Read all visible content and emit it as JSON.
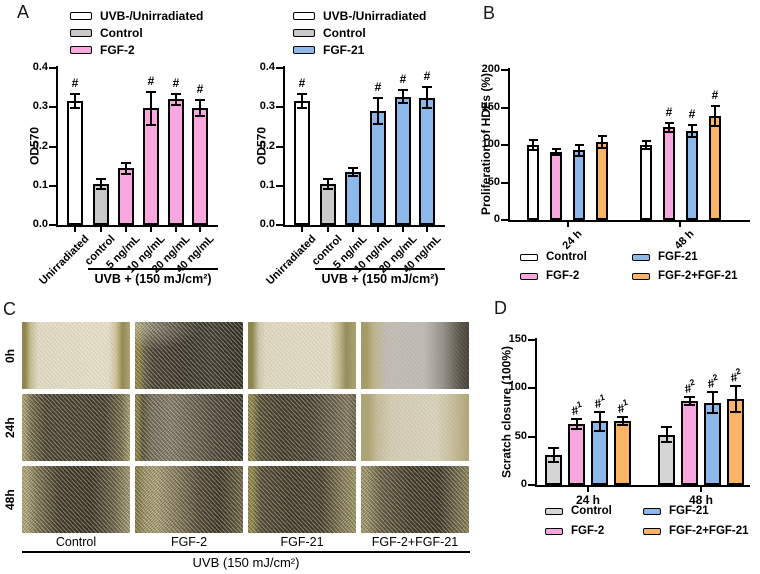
{
  "figure": {
    "background": "#ffffff"
  },
  "colors": {
    "control_white": "#ffffff",
    "control_gray": "#c9c9c9",
    "control_gray_d": "#d6d6d6",
    "fgf2_pink": "#f8a8de",
    "fgf21_blue": "#8cb8ea",
    "combo_orange": "#f9b468"
  },
  "panels": {
    "A": {
      "letter": "A"
    },
    "B": {
      "letter": "B"
    },
    "C": {
      "letter": "C",
      "row_labels": [
        "0h",
        "24h",
        "48h"
      ],
      "col_labels": [
        "Control",
        "FGF-2",
        "FGF-21",
        "FGF-2+FGF-21"
      ],
      "caption": "UVB (150 mJ/cm²)"
    },
    "D": {
      "letter": "D"
    }
  },
  "chart_data": [
    {
      "id": "A-left",
      "type": "bar",
      "panel": "A",
      "ylabel": "OD570",
      "ylim": [
        0,
        0.4
      ],
      "yticks": [
        0,
        0.1,
        0.2,
        0.3,
        0.4
      ],
      "ytick_labels": [
        "0.0",
        "0.1",
        "0.2",
        "0.3",
        "0.4"
      ],
      "categories": [
        "Unirradiated",
        "control",
        "5 ng/mL",
        "10 ng/mL",
        "20 ng/mL",
        "40 ng/mL"
      ],
      "values": [
        0.315,
        0.105,
        0.145,
        0.297,
        0.32,
        0.298
      ],
      "errors": [
        0.018,
        0.013,
        0.014,
        0.042,
        0.015,
        0.02
      ],
      "annotations": [
        "#",
        "",
        "",
        "#",
        "#",
        "#"
      ],
      "bar_colors": [
        "#ffffff",
        "#c9c9c9",
        "#f8a8de",
        "#f8a8de",
        "#f8a8de",
        "#f8a8de"
      ],
      "legend": [
        {
          "label": "UVB-/Unirradiated",
          "color": "#ffffff"
        },
        {
          "label": "Control",
          "color": "#c9c9c9"
        },
        {
          "label": "FGF-2",
          "color": "#f8a8de"
        }
      ],
      "legend_position": "top",
      "group_label": "UVB + (150 mJ/cm²)",
      "grid": false
    },
    {
      "id": "A-right",
      "type": "bar",
      "panel": "A",
      "ylabel": "OD570",
      "ylim": [
        0,
        0.4
      ],
      "yticks": [
        0,
        0.1,
        0.2,
        0.3,
        0.4
      ],
      "ytick_labels": [
        "0.0",
        "0.1",
        "0.2",
        "0.3",
        "0.4"
      ],
      "categories": [
        "Unirradiated",
        "control",
        "5 ng/mL",
        "10 ng/mL",
        "20 ng/mL",
        "40 ng/mL"
      ],
      "values": [
        0.315,
        0.105,
        0.135,
        0.291,
        0.327,
        0.324
      ],
      "errors": [
        0.018,
        0.013,
        0.01,
        0.033,
        0.017,
        0.027
      ],
      "annotations": [
        "#",
        "",
        "",
        "#",
        "#",
        "#"
      ],
      "bar_colors": [
        "#ffffff",
        "#c9c9c9",
        "#8cb8ea",
        "#8cb8ea",
        "#8cb8ea",
        "#8cb8ea"
      ],
      "legend": [
        {
          "label": "UVB-/Unirradiated",
          "color": "#ffffff"
        },
        {
          "label": "Control",
          "color": "#c9c9c9"
        },
        {
          "label": "FGF-21",
          "color": "#8cb8ea"
        }
      ],
      "legend_position": "top",
      "group_label": "UVB + (150 mJ/cm²)",
      "grid": false
    },
    {
      "id": "B",
      "type": "bar",
      "panel": "B",
      "ylabel": "Proliferation of HDFs (%)",
      "ylim": [
        0,
        200
      ],
      "yticks": [
        0,
        50,
        100,
        150,
        200
      ],
      "ytick_labels": [
        "0",
        "50",
        "100",
        "150",
        "200"
      ],
      "categories": [
        "24 h",
        "48 h"
      ],
      "series": [
        {
          "name": "Control",
          "color": "#ffffff",
          "values": [
            100,
            100
          ],
          "errors": [
            7,
            5
          ],
          "annotations": [
            "",
            ""
          ]
        },
        {
          "name": "FGF-2",
          "color": "#f8a8de",
          "values": [
            91,
            124
          ],
          "errors": [
            4,
            6
          ],
          "annotations": [
            "",
            "#"
          ]
        },
        {
          "name": "FGF-21",
          "color": "#8cb8ea",
          "values": [
            93,
            119
          ],
          "errors": [
            7,
            8
          ],
          "annotations": [
            "",
            "#"
          ]
        },
        {
          "name": "FGF-2+FGF-21",
          "color": "#f9b468",
          "values": [
            104,
            139
          ],
          "errors": [
            8,
            13
          ],
          "annotations": [
            "",
            "#"
          ]
        }
      ],
      "legend_position": "bottom",
      "grid": false
    },
    {
      "id": "D",
      "type": "bar",
      "panel": "D",
      "ylabel": "Scratch closure (100%)",
      "ylim": [
        0,
        150
      ],
      "yticks": [
        0,
        50,
        100,
        150
      ],
      "ytick_labels": [
        "0",
        "50",
        "100",
        "150"
      ],
      "categories": [
        "24 h",
        "48 h"
      ],
      "series": [
        {
          "name": "Control",
          "color": "#d6d6d6",
          "values": [
            31,
            52
          ],
          "errors": [
            7,
            8
          ],
          "annotations": [
            "",
            ""
          ]
        },
        {
          "name": "FGF-2",
          "color": "#f8a8de",
          "values": [
            63,
            87
          ],
          "errors": [
            5,
            4
          ],
          "annotations": [
            "#1",
            "#2"
          ]
        },
        {
          "name": "FGF-21",
          "color": "#8cb8ea",
          "values": [
            66,
            85
          ],
          "errors": [
            10,
            11
          ],
          "annotations": [
            "#1",
            "#2"
          ]
        },
        {
          "name": "FGF-2+FGF-21",
          "color": "#f9b468",
          "values": [
            66,
            89
          ],
          "errors": [
            4,
            13
          ],
          "annotations": [
            "#1",
            "#2"
          ]
        }
      ],
      "legend_position": "bottom",
      "grid": false
    }
  ]
}
